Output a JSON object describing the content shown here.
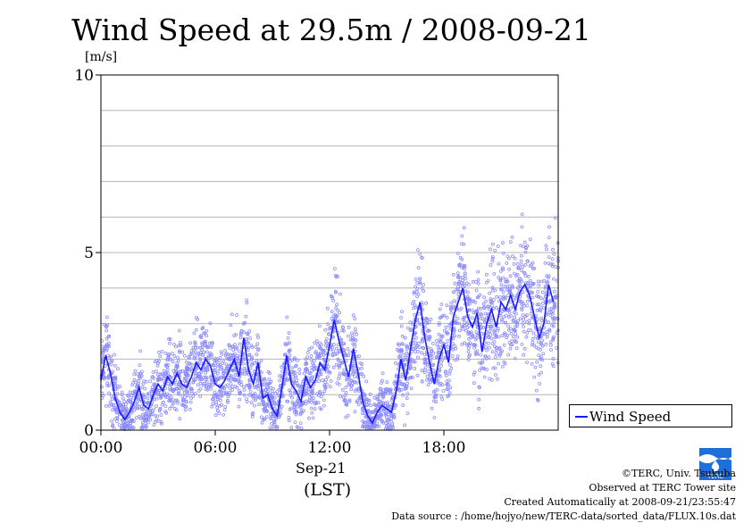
{
  "chart_data": {
    "type": "scatter",
    "title": "Wind Speed at 29.5m / 2008-09-21",
    "ylabel": "[m/s]",
    "xlabel_date": "Sep-21",
    "xlabel_zone": "(LST)",
    "ylim": [
      0,
      10
    ],
    "xlim_hours": [
      0,
      24
    ],
    "y_ticks": [
      "0",
      "5",
      "10"
    ],
    "x_ticks": [
      "00:00",
      "06:00",
      "12:00",
      "18:00"
    ],
    "grid": true,
    "legend_position": "bottom-right-outside",
    "series": [
      {
        "name": "Wind Speed",
        "color": "#1a1aff",
        "marker_color": "#8a8aff",
        "x_hours": [
          0.0,
          0.25,
          0.5,
          0.75,
          1.0,
          1.25,
          1.5,
          1.75,
          2.0,
          2.25,
          2.5,
          2.75,
          3.0,
          3.25,
          3.5,
          3.75,
          4.0,
          4.25,
          4.5,
          4.75,
          5.0,
          5.25,
          5.5,
          5.75,
          6.0,
          6.25,
          6.5,
          6.75,
          7.0,
          7.25,
          7.5,
          7.75,
          8.0,
          8.25,
          8.5,
          8.75,
          9.0,
          9.25,
          9.5,
          9.75,
          10.0,
          10.25,
          10.5,
          10.75,
          11.0,
          11.25,
          11.5,
          11.75,
          12.0,
          12.25,
          12.5,
          12.75,
          13.0,
          13.25,
          13.5,
          13.75,
          14.0,
          14.25,
          14.5,
          14.75,
          15.0,
          15.25,
          15.5,
          15.75,
          16.0,
          16.25,
          16.5,
          16.75,
          17.0,
          17.25,
          17.5,
          17.75,
          18.0,
          18.25,
          18.5,
          18.75,
          19.0,
          19.25,
          19.5,
          19.75,
          20.0,
          20.25,
          20.5,
          20.75,
          21.0,
          21.25,
          21.5,
          21.75,
          22.0,
          22.25,
          22.5,
          22.75,
          23.0,
          23.25,
          23.5,
          23.75
        ],
        "values": [
          1.4,
          2.1,
          1.6,
          0.9,
          0.5,
          0.3,
          0.5,
          0.8,
          1.2,
          0.7,
          0.6,
          1.0,
          1.3,
          1.1,
          1.5,
          1.3,
          1.6,
          1.3,
          1.2,
          1.5,
          1.9,
          1.7,
          2.0,
          1.8,
          1.3,
          1.2,
          1.4,
          1.7,
          2.0,
          1.5,
          2.6,
          1.7,
          1.3,
          1.9,
          0.9,
          1.0,
          0.6,
          0.4,
          1.2,
          2.1,
          1.3,
          1.1,
          0.8,
          1.5,
          1.2,
          1.4,
          1.9,
          1.7,
          2.4,
          3.1,
          2.5,
          2.0,
          1.5,
          2.3,
          1.6,
          0.8,
          0.4,
          0.2,
          0.5,
          0.7,
          0.6,
          0.5,
          1.1,
          2.0,
          1.4,
          2.3,
          3.1,
          3.6,
          2.6,
          1.9,
          1.3,
          2.0,
          2.4,
          1.9,
          3.2,
          3.6,
          4.0,
          3.2,
          2.9,
          3.3,
          2.2,
          3.0,
          3.4,
          2.9,
          3.6,
          3.4,
          3.8,
          3.4,
          3.9,
          4.1,
          3.8,
          3.2,
          2.6,
          3.0,
          4.1,
          3.6
        ]
      }
    ]
  },
  "legend": {
    "label": "Wind Speed"
  },
  "credits": {
    "line1": "©TERC, Univ. Tsukuba",
    "line2": "Observed at TERC Tower site",
    "line3": "Created Automatically at 2008-09-21/23:55:47",
    "line4": "Data source : /home/hojyo/new/TERC-data/sorted_data/FLUX.10s.dat"
  },
  "logo": {
    "label": "TERC"
  }
}
